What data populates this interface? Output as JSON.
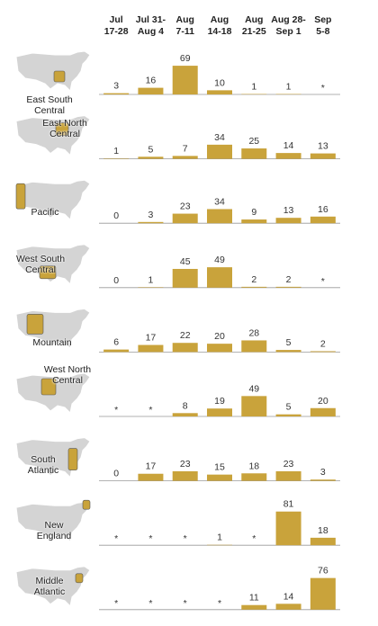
{
  "chart_data": {
    "type": "bar",
    "categories": [
      "Jul\n17-28",
      "Jul 31-\nAug 4",
      "Aug\n7-11",
      "Aug\n14-18",
      "Aug\n21-25",
      "Aug 28-\nSep 1",
      "Sep\n5-8"
    ],
    "ylim": [
      0,
      80
    ],
    "series": [
      {
        "name": "East South\nCentral",
        "color": "#c9a33b",
        "values": [
          3,
          16,
          69,
          10,
          1,
          1,
          null
        ],
        "value_labels": [
          "3",
          "16",
          "69",
          "10",
          "1",
          "1",
          "*"
        ]
      },
      {
        "name": "East North\nCentral",
        "color": "#c9a33b",
        "values": [
          1,
          5,
          7,
          34,
          25,
          14,
          13
        ],
        "value_labels": [
          "1",
          "5",
          "7",
          "34",
          "25",
          "14",
          "13"
        ]
      },
      {
        "name": "Pacific",
        "color": "#c9a33b",
        "values": [
          0,
          3,
          23,
          34,
          9,
          13,
          16
        ],
        "value_labels": [
          "0",
          "3",
          "23",
          "34",
          "9",
          "13",
          "16"
        ]
      },
      {
        "name": "West South\nCentral",
        "color": "#c9a33b",
        "values": [
          0,
          1,
          45,
          49,
          2,
          2,
          null
        ],
        "value_labels": [
          "0",
          "1",
          "45",
          "49",
          "2",
          "2",
          "*"
        ]
      },
      {
        "name": "Mountain",
        "color": "#c9a33b",
        "values": [
          6,
          17,
          22,
          20,
          28,
          5,
          2
        ],
        "value_labels": [
          "6",
          "17",
          "22",
          "20",
          "28",
          "5",
          "2"
        ]
      },
      {
        "name": "West North\nCentral",
        "color": "#c9a33b",
        "values": [
          null,
          null,
          8,
          19,
          49,
          5,
          20
        ],
        "value_labels": [
          "*",
          "*",
          "8",
          "19",
          "49",
          "5",
          "20"
        ]
      },
      {
        "name": "South\nAtlantic",
        "color": "#c9a33b",
        "values": [
          0,
          17,
          23,
          15,
          18,
          23,
          3
        ],
        "value_labels": [
          "0",
          "17",
          "23",
          "15",
          "18",
          "23",
          "3"
        ]
      },
      {
        "name": "New\nEngland",
        "color": "#c9a33b",
        "values": [
          null,
          null,
          null,
          1,
          null,
          81,
          18
        ],
        "value_labels": [
          "*",
          "*",
          "*",
          "1",
          "*",
          "81",
          "18"
        ]
      },
      {
        "name": "Middle\nAtlantic",
        "color": "#c9a33b",
        "values": [
          null,
          null,
          null,
          null,
          11,
          14,
          76
        ],
        "value_labels": [
          "*",
          "*",
          "*",
          "*",
          "11",
          "14",
          "76"
        ]
      }
    ]
  }
}
